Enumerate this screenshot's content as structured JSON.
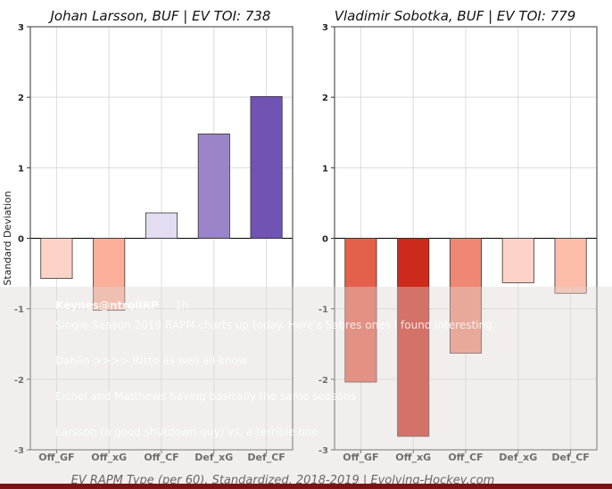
{
  "chart_data": [
    {
      "type": "bar",
      "title": "Johan Larsson, BUF  |  EV TOI: 738",
      "ylabel": "Standard Deviation",
      "categories": [
        "Off_GF",
        "Off_xG",
        "Off_CF",
        "Def_xG",
        "Def_CF"
      ],
      "values": [
        -0.57,
        -1.02,
        0.36,
        1.48,
        2.01
      ],
      "colors": [
        "#fdd3c8",
        "#fbae9a",
        "#e4ddf1",
        "#9b84c7",
        "#7153b3"
      ],
      "ylim": [
        -3,
        3
      ],
      "yticks": [
        -3,
        -2,
        -1,
        0,
        1,
        2,
        3
      ],
      "grid": true
    },
    {
      "type": "bar",
      "title": "Vladimir Sobotka, BUF  |  EV TOI: 779",
      "ylabel": "",
      "categories": [
        "Off_GF",
        "Off_xG",
        "Off_CF",
        "Def_xG",
        "Def_CF"
      ],
      "values": [
        -2.04,
        -2.81,
        -1.63,
        -0.63,
        -0.78
      ],
      "colors": [
        "#e5604a",
        "#cc2a1b",
        "#ef8873",
        "#fdd3c8",
        "#fcbcaa"
      ],
      "ylim": [
        -3,
        3
      ],
      "yticks": [
        -3,
        -2,
        -1,
        0,
        1,
        2,
        3
      ],
      "grid": true
    }
  ],
  "caption": "EV RAPM Type (per 60), Standardized, 2018-2019    |    Evolving-Hockey.com",
  "overlay": {
    "author": "Keynes@ntrollRP",
    "time": "1h",
    "lines": [
      "Single-Season 2019 RAPM charts up today. Here's Sabres ones I found interesting.",
      "Dahlin >>>> Risto as well all know",
      "Eichel and Matthews having basically the same seasons",
      "Larsson (a good shutdown guy) vs. a terrible one"
    ]
  }
}
